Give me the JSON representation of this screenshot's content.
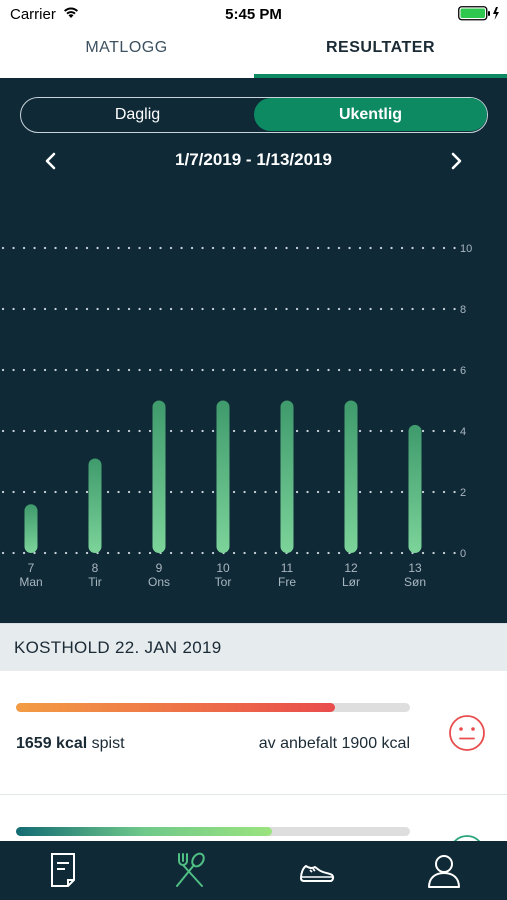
{
  "status_bar": {
    "carrier": "Carrier",
    "time": "5:45 PM"
  },
  "top_tabs": [
    {
      "label": "MATLOGG",
      "active": false
    },
    {
      "label": "RESULTATER",
      "active": true
    }
  ],
  "segment": {
    "left_label": "Daglig",
    "right_label": "Ukentlig",
    "selected": "Ukentlig"
  },
  "date_range": "1/7/2019 - 1/13/2019",
  "chart_data": {
    "type": "bar",
    "categories": [
      "7",
      "8",
      "9",
      "10",
      "11",
      "12",
      "13"
    ],
    "day_labels": [
      "Man",
      "Tir",
      "Ons",
      "Tor",
      "Fre",
      "Lør",
      "Søn"
    ],
    "values": [
      1.6,
      3.1,
      5.0,
      5.0,
      5.0,
      5.0,
      4.2
    ],
    "yticks": [
      "0",
      "2",
      "4",
      "6",
      "8",
      "10"
    ],
    "ylim": [
      0,
      10
    ],
    "grid": true,
    "bar_color_top": "#3f9a6c",
    "bar_color_bottom": "#7cd49a"
  },
  "section": {
    "title": "KOSTHOLD 22. JAN 2019"
  },
  "diet": {
    "progress_fraction": 0.81,
    "eaten_value": "1659 kcal",
    "eaten_suffix": "spist",
    "recommended": "av anbefalt 1900 kcal",
    "mood": "neutral-face-icon",
    "warning_color": "#e84c4c"
  },
  "second_card": {
    "progress_fraction": 0.65
  },
  "tab_bar": [
    {
      "name": "log-icon",
      "active": false
    },
    {
      "name": "food-icon",
      "active": true
    },
    {
      "name": "shoe-icon",
      "active": false
    },
    {
      "name": "profile-icon",
      "active": false
    }
  ],
  "colors": {
    "accent": "#0e8a63",
    "panel": "#0f2937"
  }
}
